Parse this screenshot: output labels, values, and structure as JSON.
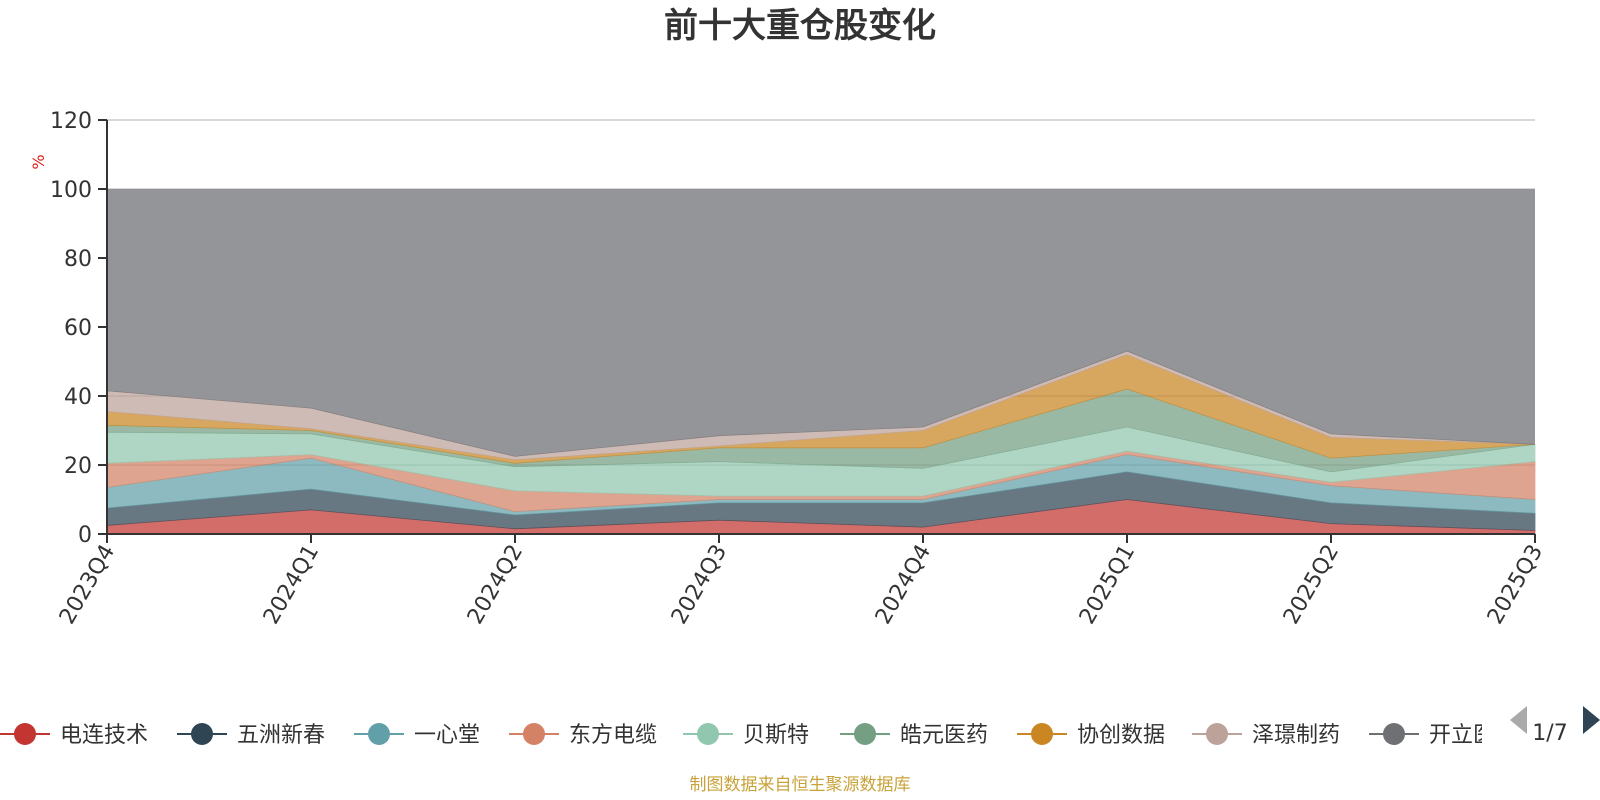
{
  "chart_data": {
    "type": "area",
    "title": "前十大重仓股变化",
    "ylabel": "%",
    "ylim": [
      0,
      120
    ],
    "yticks": [
      0,
      20,
      40,
      60,
      80,
      100,
      120
    ],
    "grid": true,
    "legend_position": "bottom",
    "categories": [
      "2023Q4",
      "2024Q1",
      "2024Q2",
      "2024Q3",
      "2024Q4",
      "2025Q1",
      "2025Q2",
      "2025Q3"
    ],
    "series": [
      {
        "name": "电连技术",
        "color": "#c23531",
        "values": [
          2.5,
          7,
          1.5,
          4,
          2,
          10,
          3,
          1
        ]
      },
      {
        "name": "五洲新春",
        "color": "#2f4554",
        "values": [
          5,
          6,
          4,
          5,
          7,
          8,
          6,
          5
        ]
      },
      {
        "name": "一心堂",
        "color": "#61a0a8",
        "values": [
          6,
          9,
          1,
          1,
          1,
          5,
          5,
          4
        ]
      },
      {
        "name": "东方电缆",
        "color": "#d48265",
        "values": [
          7,
          1,
          6,
          1,
          1,
          1,
          1,
          11
        ]
      },
      {
        "name": "贝斯特",
        "color": "#91c7ae",
        "values": [
          9,
          6,
          7,
          10,
          8,
          7,
          3,
          5
        ]
      },
      {
        "name": "皓元医药",
        "color": "#749f83",
        "values": [
          2,
          1,
          1,
          4,
          6,
          11,
          4,
          0
        ]
      },
      {
        "name": "协创数据",
        "color": "#ca8622",
        "values": [
          4,
          0.5,
          1,
          0.5,
          5,
          10,
          6,
          0
        ]
      },
      {
        "name": "泽璟制药",
        "color": "#bda29a",
        "values": [
          6,
          6,
          1,
          3,
          1,
          1,
          1,
          0
        ]
      },
      {
        "name": "开立医疗",
        "color": "#6e7074",
        "values": [
          0,
          0,
          0,
          0,
          0,
          0,
          0,
          0
        ]
      }
    ],
    "legend_visible_names": [
      "电连技术",
      "五洲新春",
      "一心堂",
      "东方电缆",
      "贝斯特",
      "皓元医药",
      "协创数据",
      "泽璟制药",
      "开立医疗"
    ],
    "legend_page": "1/7"
  },
  "source_note": "制图数据来自恒生聚源数据库",
  "colors": {
    "rest_band": "#8e8f94",
    "axis": "#333333",
    "grid": "#cccccc",
    "unit": "#e0201b",
    "source": "#c9a23a",
    "pager_active": "#2f4554",
    "pager_inactive": "#aaaaaa",
    "stripe_palette": [
      "#c23531",
      "#2f4554",
      "#61a0a8",
      "#d48265",
      "#91c7ae",
      "#749f83",
      "#ca8622",
      "#bda29a",
      "#6e7074",
      "#546570",
      "#c4ccd3"
    ]
  }
}
